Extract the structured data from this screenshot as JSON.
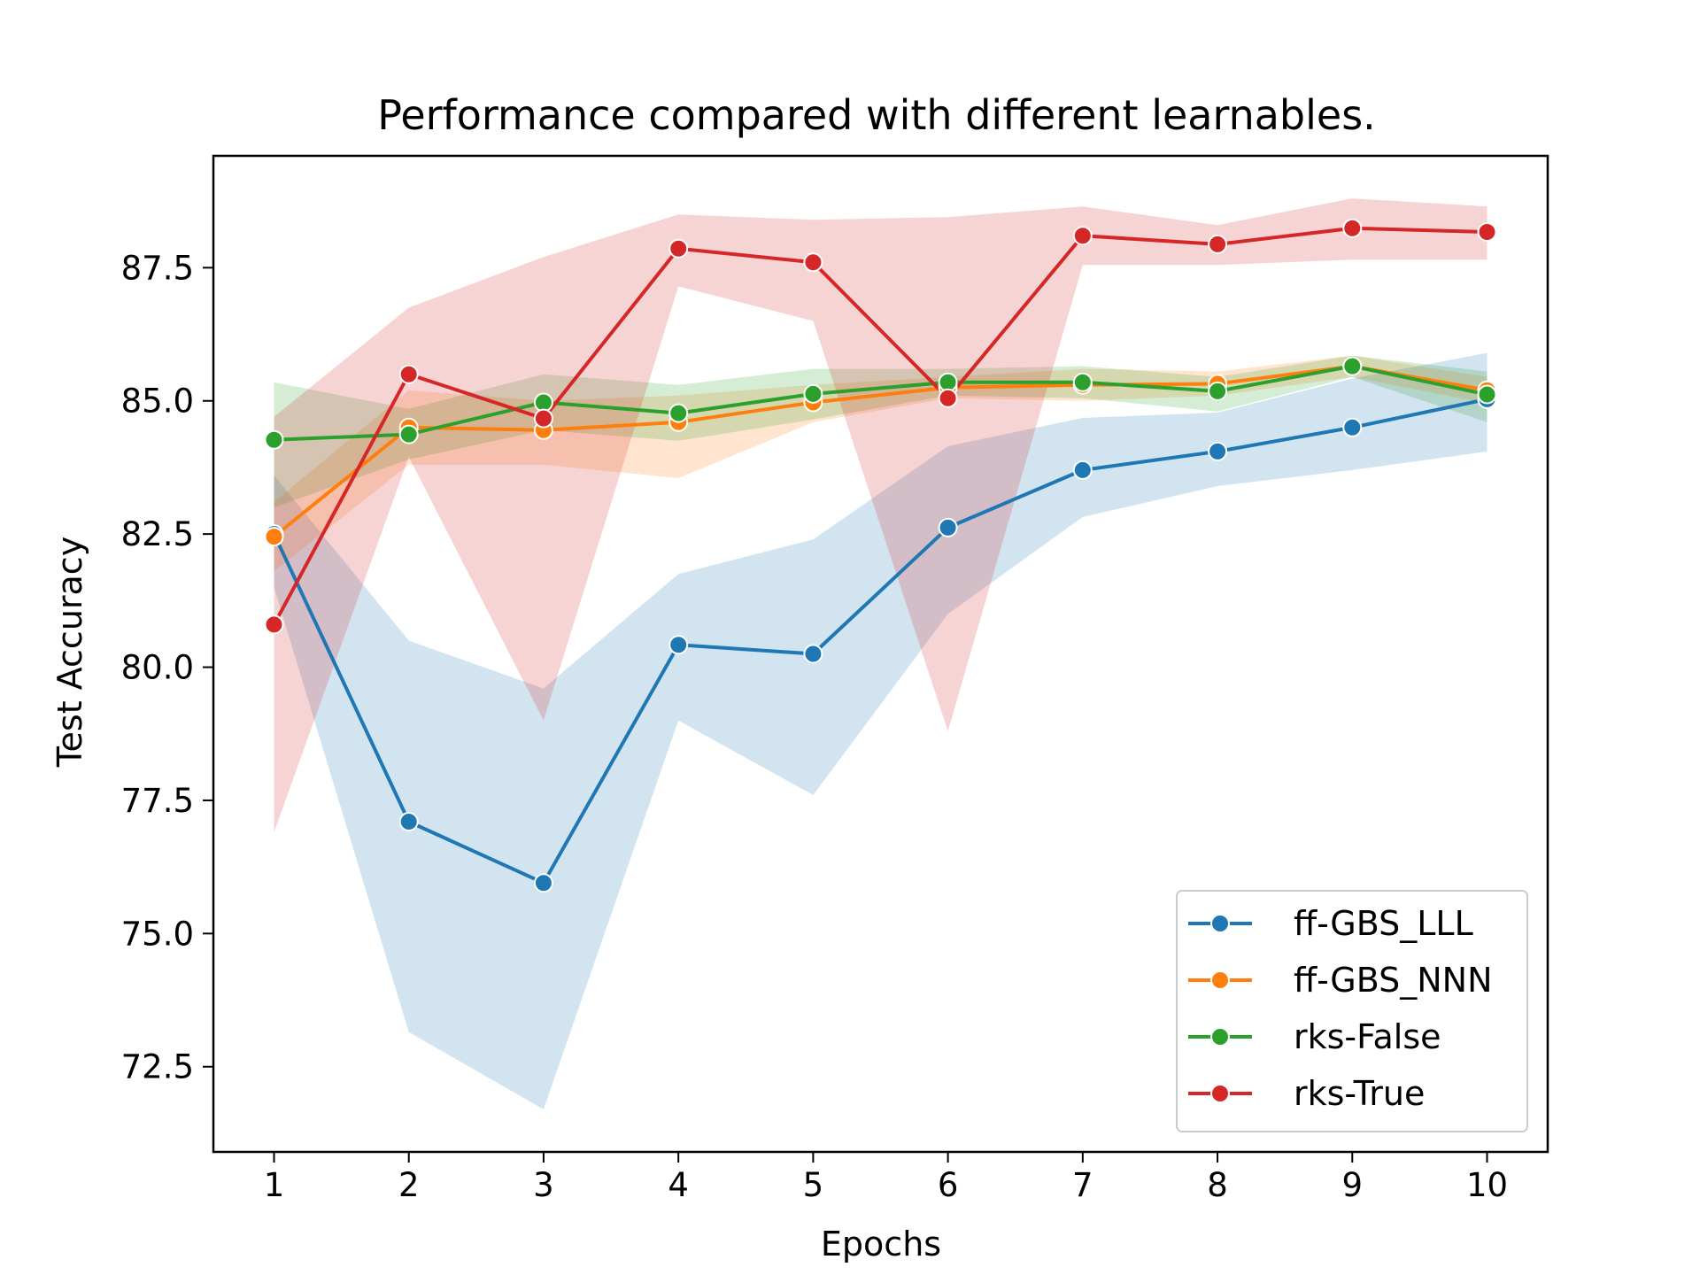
{
  "chart_data": {
    "type": "line",
    "title": "Performance compared with different learnables.",
    "xlabel": "Epochs",
    "ylabel": "Test Accuracy",
    "x": [
      1,
      2,
      3,
      4,
      5,
      6,
      7,
      8,
      9,
      10
    ],
    "xticks": [
      "1",
      "2",
      "3",
      "4",
      "5",
      "6",
      "7",
      "8",
      "9",
      "10"
    ],
    "yticks": [
      {
        "value": 72.5,
        "label": "72.5"
      },
      {
        "value": 75.0,
        "label": "75.0"
      },
      {
        "value": 77.5,
        "label": "77.5"
      },
      {
        "value": 80.0,
        "label": "80.0"
      },
      {
        "value": 82.5,
        "label": "82.5"
      },
      {
        "value": 85.0,
        "label": "85.0"
      },
      {
        "value": 87.5,
        "label": "87.5"
      }
    ],
    "xlim": [
      0.55,
      10.45
    ],
    "ylim": [
      70.9,
      89.6
    ],
    "grid": false,
    "legend_position": "lower-right",
    "series": [
      {
        "name": "ff-GBS_LLL",
        "color": "#1f77b4",
        "values": [
          82.5,
          77.1,
          75.95,
          80.42,
          80.25,
          82.62,
          83.7,
          84.05,
          84.5,
          85.03
        ],
        "band_upper": [
          83.6,
          80.5,
          79.6,
          81.75,
          82.4,
          84.15,
          84.68,
          84.78,
          85.42,
          85.9
        ],
        "band_lower": [
          81.5,
          73.15,
          71.7,
          79.0,
          77.6,
          81.0,
          82.82,
          83.4,
          83.7,
          84.05
        ]
      },
      {
        "name": "ff-GBS_NNN",
        "color": "#ff7f0e",
        "values": [
          82.45,
          84.5,
          84.45,
          84.6,
          84.97,
          85.25,
          85.3,
          85.32,
          85.65,
          85.2
        ],
        "band_upper": [
          83.1,
          85.2,
          85.0,
          85.1,
          85.3,
          85.45,
          85.6,
          85.55,
          85.85,
          85.45
        ],
        "band_lower": [
          81.8,
          83.8,
          83.8,
          83.55,
          84.6,
          85.05,
          85.0,
          85.1,
          85.45,
          84.95
        ]
      },
      {
        "name": "rks-False",
        "color": "#2ca02c",
        "values": [
          84.27,
          84.37,
          84.97,
          84.77,
          85.13,
          85.35,
          85.35,
          85.18,
          85.65,
          85.12
        ],
        "band_upper": [
          85.35,
          84.85,
          85.5,
          85.3,
          85.6,
          85.6,
          85.65,
          85.45,
          85.85,
          85.55
        ],
        "band_lower": [
          83.0,
          83.9,
          84.45,
          84.25,
          84.65,
          85.1,
          85.05,
          84.8,
          85.45,
          84.6
        ]
      },
      {
        "name": "rks-True",
        "color": "#d62728",
        "values": [
          80.8,
          85.5,
          84.67,
          87.86,
          87.6,
          85.05,
          88.1,
          87.94,
          88.24,
          88.17
        ],
        "band_upper": [
          84.7,
          86.75,
          87.7,
          88.5,
          88.4,
          88.45,
          88.65,
          88.3,
          88.8,
          88.65
        ],
        "band_lower": [
          76.9,
          83.95,
          79.0,
          87.15,
          86.5,
          78.8,
          87.55,
          87.55,
          87.65,
          87.65
        ]
      }
    ]
  }
}
